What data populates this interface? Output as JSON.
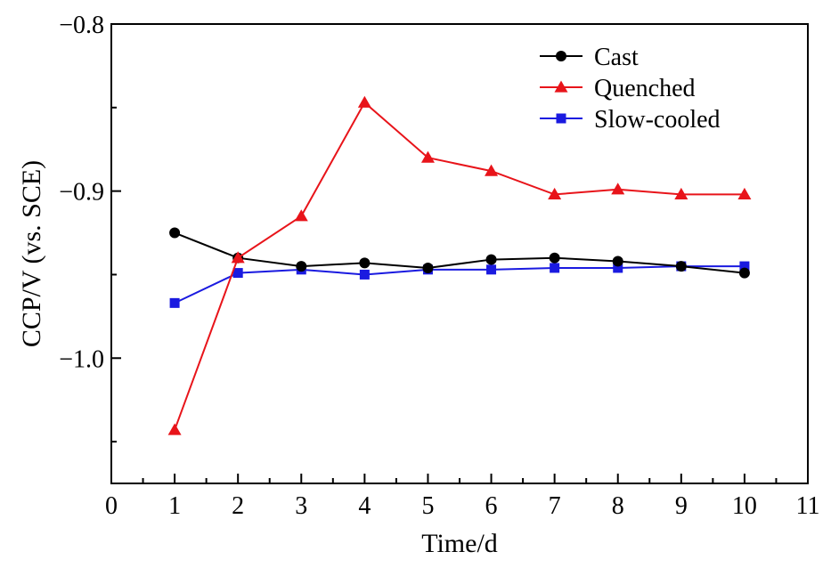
{
  "chart_data": {
    "type": "line",
    "title": "",
    "xlabel": "Time/d",
    "ylabel": "CCP/V (vs. SCE)",
    "xlim": [
      0,
      11
    ],
    "ylim": [
      -1.075,
      -0.8
    ],
    "x_ticks": [
      0,
      1,
      2,
      3,
      4,
      5,
      6,
      7,
      8,
      9,
      10,
      11
    ],
    "x_tick_labels": [
      "0",
      "1",
      "2",
      "3",
      "4",
      "5",
      "6",
      "7",
      "8",
      "9",
      "10",
      "11"
    ],
    "y_ticks": [
      -0.8,
      -0.9,
      -1.0
    ],
    "y_tick_labels": [
      "−0.8",
      "−0.9",
      "−1.0"
    ],
    "grid": false,
    "legend_position": "top-right",
    "x": [
      1,
      2,
      3,
      4,
      5,
      6,
      7,
      8,
      9,
      10
    ],
    "series": [
      {
        "name": "Cast",
        "color": "#000000",
        "marker": "circle",
        "values": [
          -0.925,
          -0.94,
          -0.945,
          -0.943,
          -0.946,
          -0.941,
          -0.94,
          -0.942,
          -0.945,
          -0.949
        ]
      },
      {
        "name": "Quenched",
        "color": "#e8141a",
        "marker": "triangle",
        "values": [
          -1.043,
          -0.94,
          -0.915,
          -0.847,
          -0.88,
          -0.888,
          -0.902,
          -0.899,
          -0.902,
          -0.902
        ]
      },
      {
        "name": "Slow-cooled",
        "color": "#1a1ae0",
        "marker": "square",
        "values": [
          -0.967,
          -0.949,
          -0.947,
          -0.95,
          -0.947,
          -0.947,
          -0.946,
          -0.946,
          -0.945,
          -0.945
        ]
      }
    ]
  }
}
